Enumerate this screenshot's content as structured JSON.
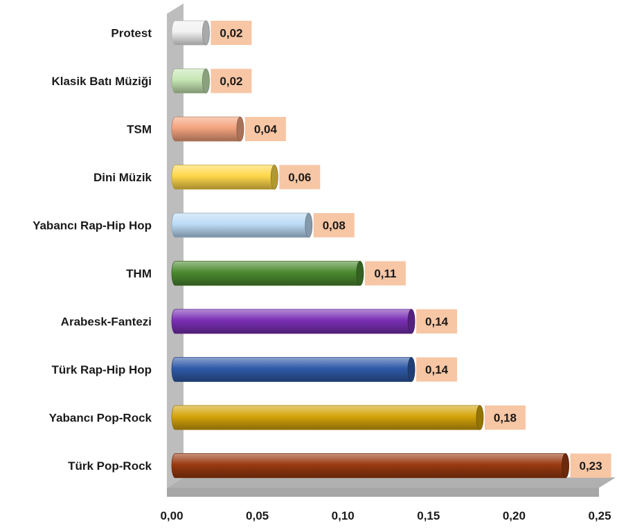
{
  "chart_data": {
    "type": "bar",
    "orientation": "horizontal",
    "categories": [
      "Protest",
      "Klasik Batı Müziği",
      "TSM",
      "Dini Müzik",
      "Yabancı Rap-Hip Hop",
      "THM",
      "Arabesk-Fantezi",
      "Türk Rap-Hip Hop",
      "Yabancı Pop-Rock",
      "Türk Pop-Rock"
    ],
    "values": [
      0.02,
      0.02,
      0.04,
      0.06,
      0.08,
      0.11,
      0.14,
      0.14,
      0.18,
      0.23
    ],
    "value_labels": [
      "0,02",
      "0,02",
      "0,04",
      "0,06",
      "0,08",
      "0,11",
      "0,14",
      "0,14",
      "0,18",
      "0,23"
    ],
    "bar_colors": [
      "#f2f2f2",
      "#c6e6b4",
      "#f4a37e",
      "#ffd84a",
      "#bcdcf6",
      "#4c8a30",
      "#7a2fb4",
      "#2f5aa8",
      "#d4a40a",
      "#9a3a10"
    ],
    "xlim": [
      0,
      0.25
    ],
    "xticks": [
      "0,00",
      "0,05",
      "0,10",
      "0,15",
      "0,20",
      "0,25"
    ],
    "xtick_values": [
      0,
      0.05,
      0.1,
      0.15,
      0.2,
      0.25
    ],
    "label_box_color": "#f7c6a4",
    "grid": false,
    "legend": "none",
    "title": "",
    "xlabel": "",
    "ylabel": ""
  }
}
